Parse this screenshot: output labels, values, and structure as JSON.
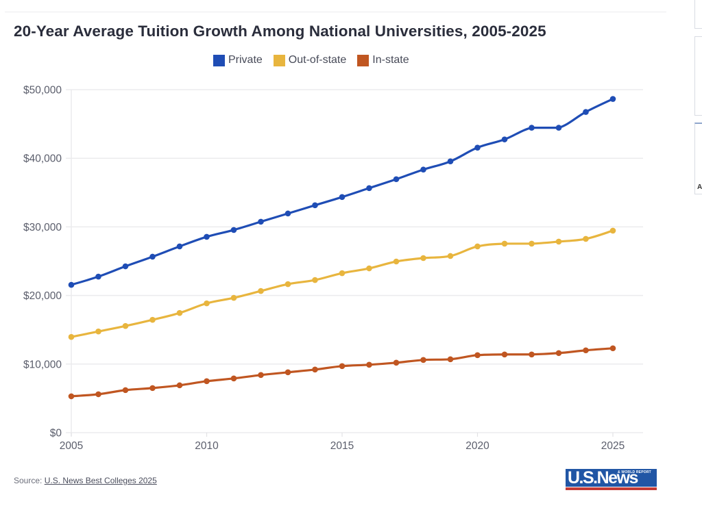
{
  "chart_data": {
    "type": "line",
    "title": "20-Year Average Tuition Growth Among National Universities, 2005-2025",
    "xlabel": "",
    "ylabel": "",
    "x": [
      2005,
      2006,
      2007,
      2008,
      2009,
      2010,
      2011,
      2012,
      2013,
      2014,
      2015,
      2016,
      2017,
      2018,
      2019,
      2020,
      2021,
      2022,
      2023,
      2024,
      2025
    ],
    "x_ticks": [
      2005,
      2010,
      2015,
      2020,
      2025
    ],
    "x_tick_labels": [
      "2005",
      "2010",
      "2015",
      "2020",
      "2025"
    ],
    "xlim": [
      2005,
      2026.1
    ],
    "ylim": [
      0,
      50000
    ],
    "y_ticks": [
      0,
      10000,
      20000,
      30000,
      40000,
      50000
    ],
    "y_tick_labels": [
      "$0",
      "$10,000",
      "$20,000",
      "$30,000",
      "$40,000",
      "$50,000"
    ],
    "grid": true,
    "legend_position": "top-center",
    "series": [
      {
        "name": "Private",
        "color": "#1f4db5",
        "values": [
          21550,
          22750,
          24250,
          25650,
          27150,
          28550,
          29550,
          30750,
          31950,
          33150,
          34350,
          35650,
          36950,
          38350,
          39550,
          41550,
          42750,
          44450,
          44450,
          46750,
          48650
        ]
      },
      {
        "name": "Out-of-state",
        "color": "#e8b53e",
        "values": [
          13950,
          14750,
          15550,
          16450,
          17450,
          18850,
          19650,
          20650,
          21650,
          22250,
          23250,
          23950,
          24950,
          25450,
          25750,
          27150,
          27550,
          27550,
          27850,
          28250,
          29450
        ]
      },
      {
        "name": "In-state",
        "color": "#c05621",
        "values": [
          5300,
          5600,
          6200,
          6500,
          6900,
          7500,
          7900,
          8400,
          8800,
          9200,
          9700,
          9900,
          10200,
          10600,
          10700,
          11300,
          11400,
          11400,
          11600,
          12000,
          12300
        ]
      }
    ]
  },
  "legend": [
    {
      "label": "Private",
      "color": "#1f4db5"
    },
    {
      "label": "Out-of-state",
      "color": "#e8b53e"
    },
    {
      "label": "In-state",
      "color": "#c05621"
    }
  ],
  "footer": {
    "source_prefix": "Source: ",
    "source_link": "U.S. News Best Colleges 2025"
  },
  "logo": {
    "main": "U.S.News",
    "sub": "& WORLD REPORT"
  },
  "side_panel": {
    "glyph": "A"
  }
}
